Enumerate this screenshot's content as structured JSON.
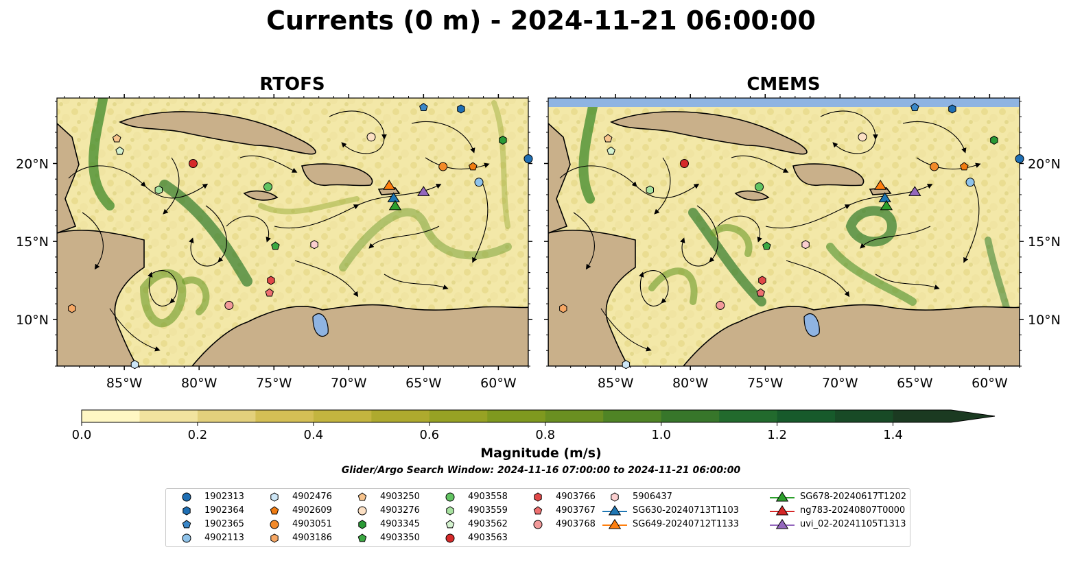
{
  "title": "Currents (0 m) - 2024-11-21 06:00:00",
  "panels": [
    {
      "title": "RTOFS",
      "land_color": "#c9b08a",
      "top_band": false
    },
    {
      "title": "CMEMS",
      "land_color": "#c9b08a",
      "top_band": true,
      "top_band_color": "#8fb4e2"
    }
  ],
  "axes": {
    "x_ticks": [
      "85°W",
      "80°W",
      "75°W",
      "70°W",
      "65°W",
      "60°W"
    ],
    "x_tick_values": [
      -85,
      -80,
      -75,
      -70,
      -65,
      -60
    ],
    "y_ticks": [
      "20°N",
      "15°N",
      "10°N"
    ],
    "y_tick_values": [
      20,
      15,
      10
    ],
    "lon_range": [
      -89.5,
      -58.0
    ],
    "lat_range": [
      7.0,
      24.2
    ]
  },
  "colorbar": {
    "label": "Magnitude (m/s)",
    "ticks": [
      "0.0",
      "0.2",
      "0.4",
      "0.6",
      "0.8",
      "1.0",
      "1.2",
      "1.4"
    ],
    "tick_values": [
      0.0,
      0.2,
      0.4,
      0.6,
      0.8,
      1.0,
      1.2,
      1.4
    ],
    "range": [
      0.0,
      1.5
    ],
    "extend": "max",
    "colors": [
      "#fff7c4",
      "#f2e39f",
      "#e3d07c",
      "#d4bf55",
      "#c3b53f",
      "#aeaa2e",
      "#97a224",
      "#7f991f",
      "#6a8f21",
      "#4f8425",
      "#37762a",
      "#226a2d",
      "#175a2b",
      "#184a26",
      "#1b3a21"
    ]
  },
  "window_text": "Glider/Argo Search Window: 2024-11-16 07:00:00 to 2024-11-21 06:00:00",
  "legend": [
    {
      "label": "1902313",
      "shape": "circle",
      "color": "#1f6fb4"
    },
    {
      "label": "1902364",
      "shape": "hexagon",
      "color": "#1f6fb4"
    },
    {
      "label": "1902365",
      "shape": "pentagon",
      "color": "#3a87c8"
    },
    {
      "label": "4902113",
      "shape": "circle",
      "color": "#8fc3ea"
    },
    {
      "label": "4902476",
      "shape": "hexagon",
      "color": "#cde6f6"
    },
    {
      "label": "4902609",
      "shape": "pentagon",
      "color": "#f07c12"
    },
    {
      "label": "4903051",
      "shape": "circle",
      "color": "#f28a2a"
    },
    {
      "label": "4903186",
      "shape": "hexagon",
      "color": "#f7a865"
    },
    {
      "label": "4903250",
      "shape": "pentagon",
      "color": "#f7c38c"
    },
    {
      "label": "4903276",
      "shape": "circle",
      "color": "#fce0c4"
    },
    {
      "label": "4903345",
      "shape": "hexagon",
      "color": "#2a9a36"
    },
    {
      "label": "4903350",
      "shape": "pentagon",
      "color": "#3ba842"
    },
    {
      "label": "4903558",
      "shape": "circle",
      "color": "#62c462"
    },
    {
      "label": "4903559",
      "shape": "hexagon",
      "color": "#a8e2a0"
    },
    {
      "label": "4903562",
      "shape": "pentagon",
      "color": "#d4f2cf"
    },
    {
      "label": "4903563",
      "shape": "circle",
      "color": "#d62a2a"
    },
    {
      "label": "4903766",
      "shape": "hexagon",
      "color": "#e04848"
    },
    {
      "label": "4903767",
      "shape": "pentagon",
      "color": "#ee7070"
    },
    {
      "label": "4903768",
      "shape": "circle",
      "color": "#f29a9a"
    },
    {
      "label": "5906437",
      "shape": "hexagon",
      "color": "#fbcfcf"
    },
    {
      "label": "SG630-20240713T1103",
      "shape": "triangle",
      "color": "#1f77b4",
      "line": true
    },
    {
      "label": "SG649-20240712T1133",
      "shape": "triangle",
      "color": "#ff7f0e",
      "line": true
    },
    {
      "label": "SG678-20240617T1202",
      "shape": "triangle",
      "color": "#2ca02c",
      "line": true
    },
    {
      "label": "ng783-20240807T0000",
      "shape": "triangle",
      "color": "#d62728",
      "line": true
    },
    {
      "label": "uvi_02-20241105T1313",
      "shape": "triangle",
      "color": "#9467bd",
      "line": true
    }
  ],
  "markers": [
    {
      "id": "1902313",
      "lon": -58.0,
      "lat": 20.3
    },
    {
      "id": "1902364",
      "lon": -62.5,
      "lat": 23.5
    },
    {
      "id": "1902365",
      "lon": -65.0,
      "lat": 23.6
    },
    {
      "id": "4902113",
      "lon": -61.3,
      "lat": 18.8
    },
    {
      "id": "4902476",
      "lon": -84.3,
      "lat": 7.1
    },
    {
      "id": "4902609",
      "lon": -61.7,
      "lat": 19.8
    },
    {
      "id": "4903051",
      "lon": -63.7,
      "lat": 19.8
    },
    {
      "id": "4903186",
      "lon": -88.5,
      "lat": 10.7
    },
    {
      "id": "4903250",
      "lon": -85.5,
      "lat": 21.6
    },
    {
      "id": "4903276",
      "lon": -68.5,
      "lat": 21.7
    },
    {
      "id": "4903345",
      "lon": -59.7,
      "lat": 21.5
    },
    {
      "id": "4903350",
      "lon": -74.9,
      "lat": 14.7
    },
    {
      "id": "4903558",
      "lon": -75.4,
      "lat": 18.5
    },
    {
      "id": "4903559",
      "lon": -82.7,
      "lat": 18.3
    },
    {
      "id": "4903562",
      "lon": -85.3,
      "lat": 20.8
    },
    {
      "id": "4903563",
      "lon": -80.4,
      "lat": 20.0
    },
    {
      "id": "4903766",
      "lon": -75.2,
      "lat": 12.5
    },
    {
      "id": "4903767",
      "lon": -75.3,
      "lat": 11.7
    },
    {
      "id": "4903768",
      "lon": -78.0,
      "lat": 10.9
    },
    {
      "id": "5906437",
      "lon": -72.3,
      "lat": 14.8
    },
    {
      "id": "SG630-20240713T1103",
      "lon": -67.0,
      "lat": 17.8
    },
    {
      "id": "SG649-20240712T1133",
      "lon": -67.3,
      "lat": 18.6
    },
    {
      "id": "SG678-20240617T1202",
      "lon": -66.9,
      "lat": 17.3
    },
    {
      "id": "uvi_02-20241105T1313",
      "lon": -65.0,
      "lat": 18.2
    }
  ]
}
